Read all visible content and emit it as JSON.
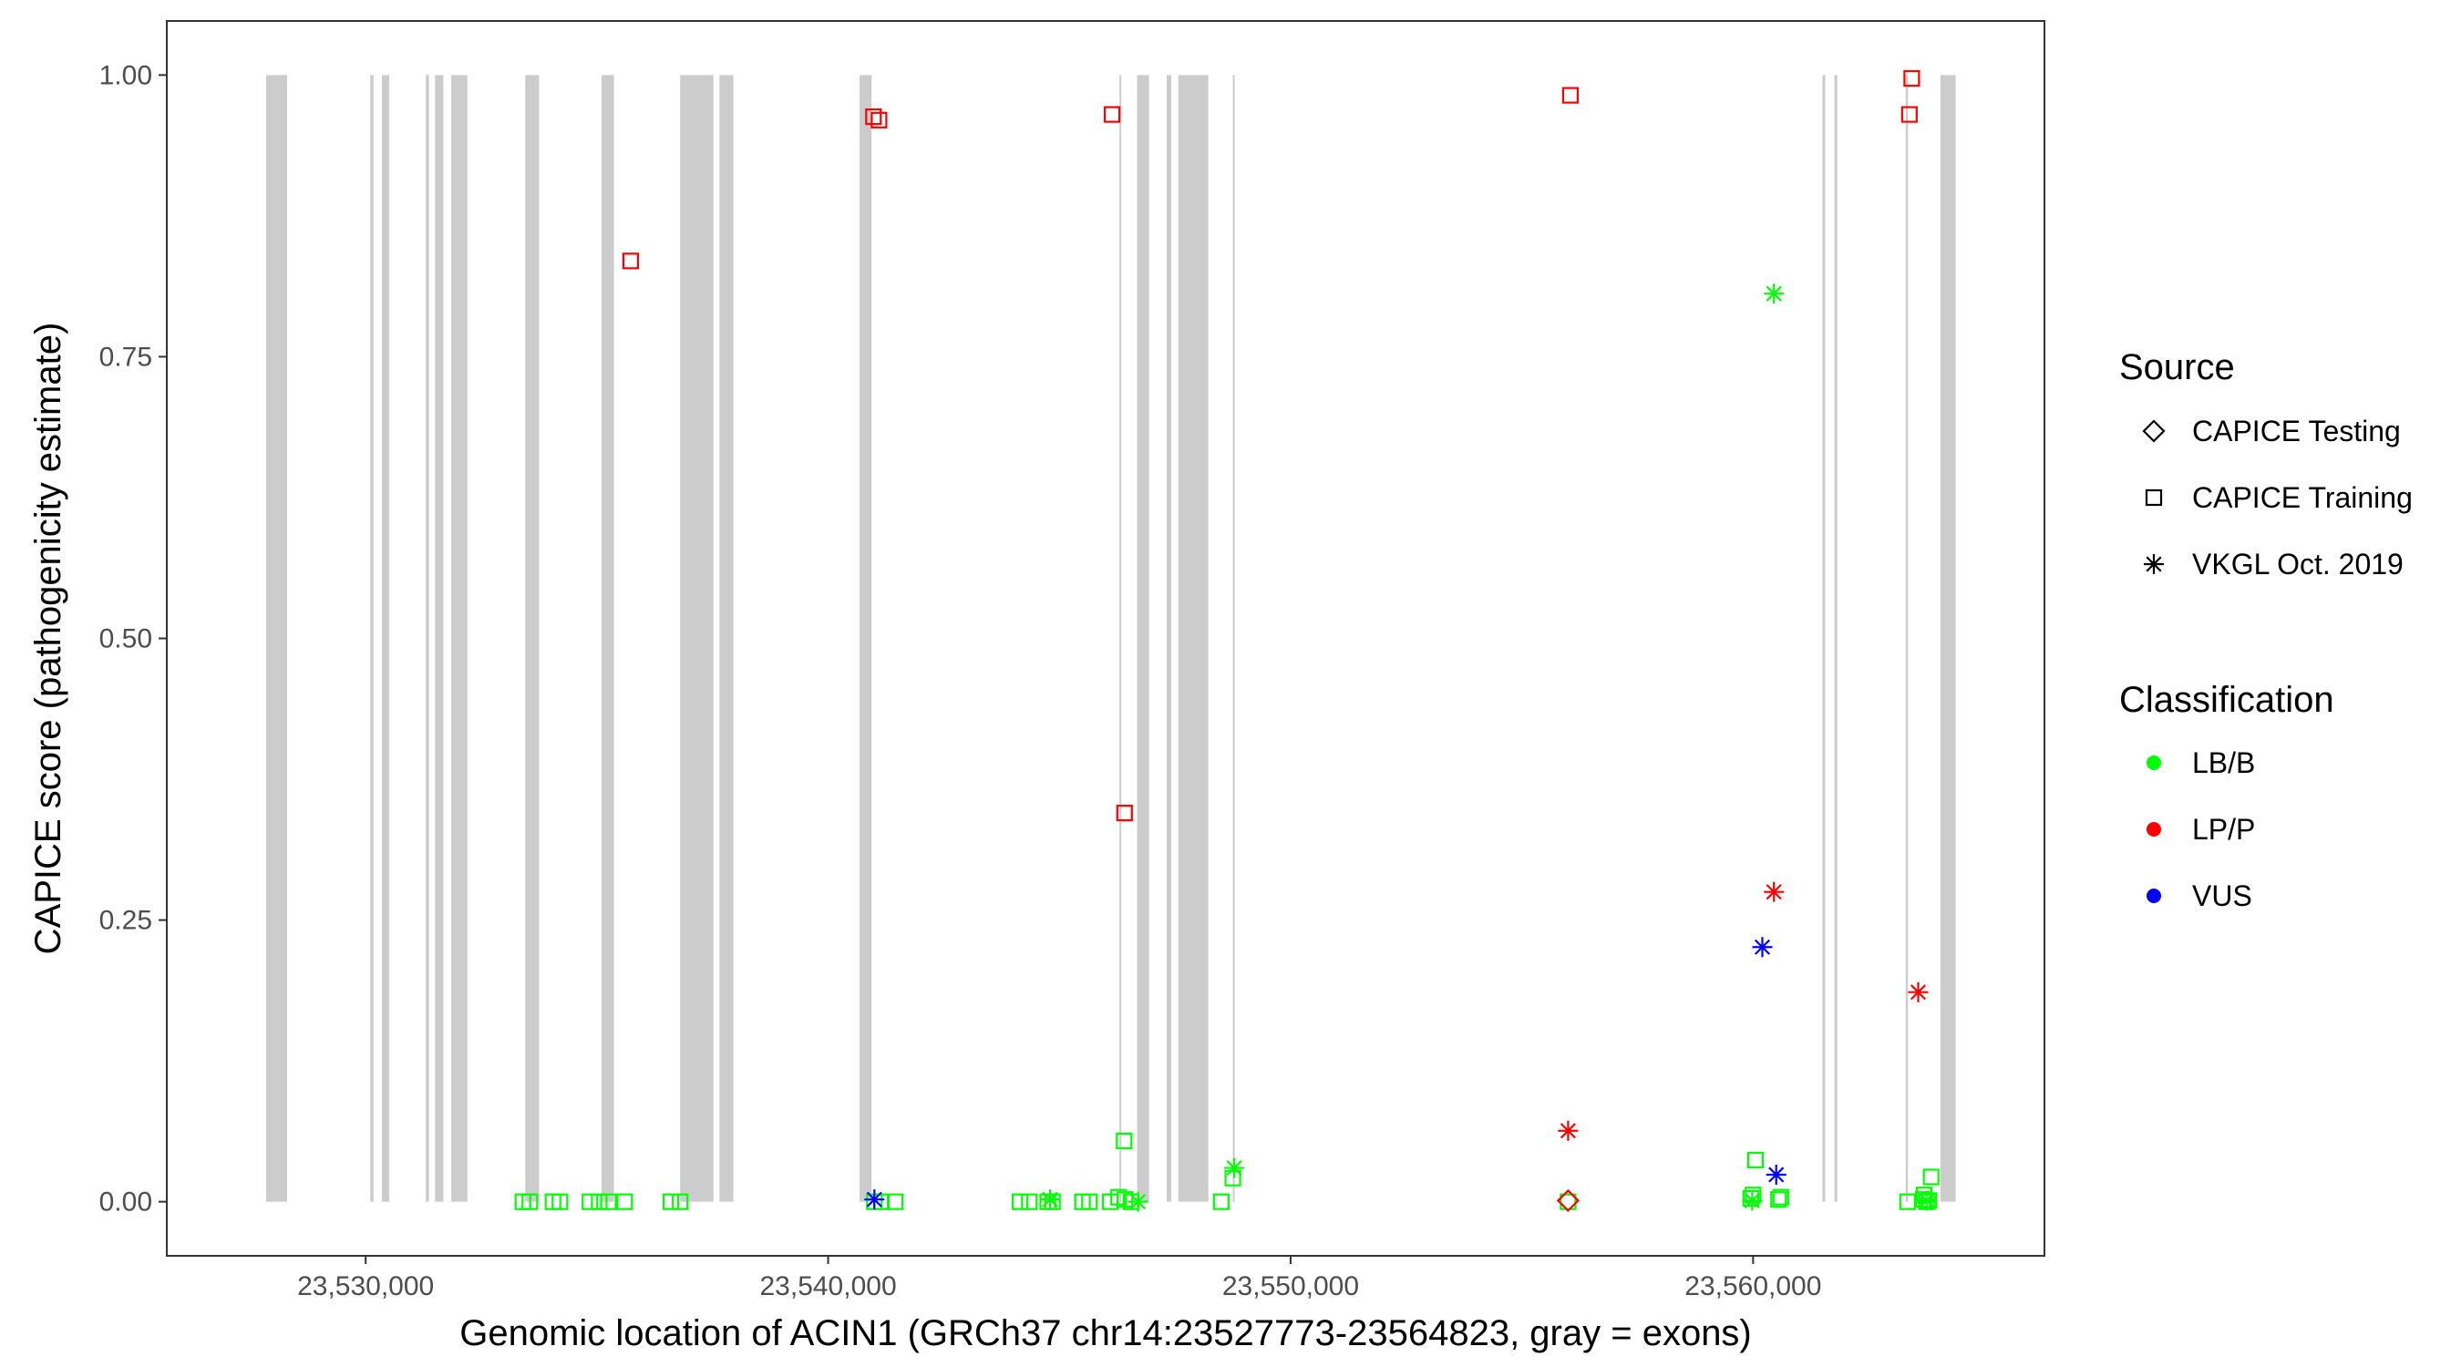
{
  "chart_data": {
    "type": "scatter",
    "xlabel": "Genomic location of ACIN1 (GRCh37 chr14:23527773-23564823, gray = exons)",
    "ylabel": "CAPICE score (pathogenicity estimate)",
    "xlim": [
      23525700,
      23566300
    ],
    "ylim": [
      -0.048,
      1.048
    ],
    "x_ticks": [
      23530000,
      23540000,
      23550000,
      23560000
    ],
    "x_tick_labels": [
      "23,530,000",
      "23,540,000",
      "23,550,000",
      "23,560,000"
    ],
    "y_ticks": [
      0,
      0.25,
      0.5,
      0.75,
      1.0
    ],
    "y_tick_labels": [
      "0.00",
      "0.25",
      "0.50",
      "0.75",
      "1.00"
    ],
    "grid": false,
    "legend_position": "right",
    "exons": [
      [
        23527850,
        23528300
      ],
      [
        23530100,
        23530170
      ],
      [
        23530350,
        23530510
      ],
      [
        23531300,
        23531370
      ],
      [
        23531500,
        23531680
      ],
      [
        23531850,
        23532200
      ],
      [
        23533450,
        23533750
      ],
      [
        23535100,
        23535370
      ],
      [
        23536800,
        23537520
      ],
      [
        23537650,
        23537950
      ],
      [
        23540680,
        23540940
      ],
      [
        23546300,
        23546330
      ],
      [
        23546680,
        23546940
      ],
      [
        23547320,
        23547420
      ],
      [
        23547570,
        23548220
      ],
      [
        23548750,
        23548790
      ],
      [
        23561500,
        23561560
      ],
      [
        23561760,
        23561820
      ],
      [
        23563300,
        23563350
      ],
      [
        23564050,
        23564380
      ]
    ],
    "legend": {
      "source": {
        "title": "Source",
        "items": [
          {
            "label": "CAPICE Testing",
            "shape": "diamond"
          },
          {
            "label": "CAPICE Training",
            "shape": "square"
          },
          {
            "label": "VKGL Oct. 2019",
            "shape": "asterisk"
          }
        ]
      },
      "classification": {
        "title": "Classification",
        "items": [
          {
            "label": "LB/B",
            "color": "#00ff00"
          },
          {
            "label": "LP/P",
            "color": "#ff0000"
          },
          {
            "label": "VUS",
            "color": "#0000ff"
          }
        ]
      }
    },
    "colors": {
      "LB/B": "#00ff00",
      "LP/P": "#ff0000",
      "VUS": "#0000ff",
      "exon": "#cccccc"
    },
    "series": [
      {
        "source": "CAPICE Training",
        "classification": "LP/P",
        "shape": "square",
        "x": [
          23535730,
          23540980,
          23541100,
          23546140,
          23546410,
          23556050,
          23563380,
          23563430
        ],
        "y": [
          0.835,
          0.963,
          0.96,
          0.965,
          0.345,
          0.982,
          0.965,
          0.997
        ]
      },
      {
        "source": "CAPICE Training",
        "classification": "LB/B",
        "shape": "square",
        "x": [
          23533400,
          23533550,
          23534050,
          23534200,
          23534850,
          23535050,
          23535250,
          23535600,
          23536600,
          23536800,
          23541000,
          23541150,
          23541450,
          23544150,
          23544350,
          23544750,
          23544850,
          23545500,
          23545650,
          23546100,
          23546280,
          23546400,
          23546420,
          23546550,
          23548500,
          23548750,
          23556000,
          23559950,
          23560000,
          23560050,
          23560550,
          23560600,
          23563340,
          23563680,
          23563700,
          23563750,
          23563800,
          23563850
        ],
        "y": [
          0,
          0,
          0,
          0,
          0,
          0,
          0,
          0,
          0,
          0,
          0,
          0,
          0,
          0,
          0,
          0,
          0,
          0,
          0,
          0,
          0.004,
          0.054,
          0.002,
          0,
          0,
          0.021,
          0,
          0.003,
          0.006,
          0.037,
          0.002,
          0.004,
          0,
          0.002,
          0.006,
          0,
          0.001,
          0.022
        ]
      },
      {
        "source": "CAPICE Testing",
        "classification": "LP/P",
        "shape": "diamond",
        "x": [
          23556000
        ],
        "y": [
          0.001
        ]
      },
      {
        "source": "VKGL Oct. 2019",
        "classification": "LB/B",
        "shape": "asterisk",
        "x": [
          23544800,
          23546700,
          23548780,
          23560450,
          23559980,
          23563750
        ],
        "y": [
          0.002,
          0,
          0.03,
          0.806,
          0.001,
          0.001
        ]
      },
      {
        "source": "VKGL Oct. 2019",
        "classification": "LP/P",
        "shape": "asterisk",
        "x": [
          23556000,
          23560450,
          23563570
        ],
        "y": [
          0.063,
          0.275,
          0.186
        ]
      },
      {
        "source": "VKGL Oct. 2019",
        "classification": "VUS",
        "shape": "asterisk",
        "x": [
          23541000,
          23560200,
          23560500
        ],
        "y": [
          0.002,
          0.226,
          0.024
        ]
      }
    ]
  }
}
